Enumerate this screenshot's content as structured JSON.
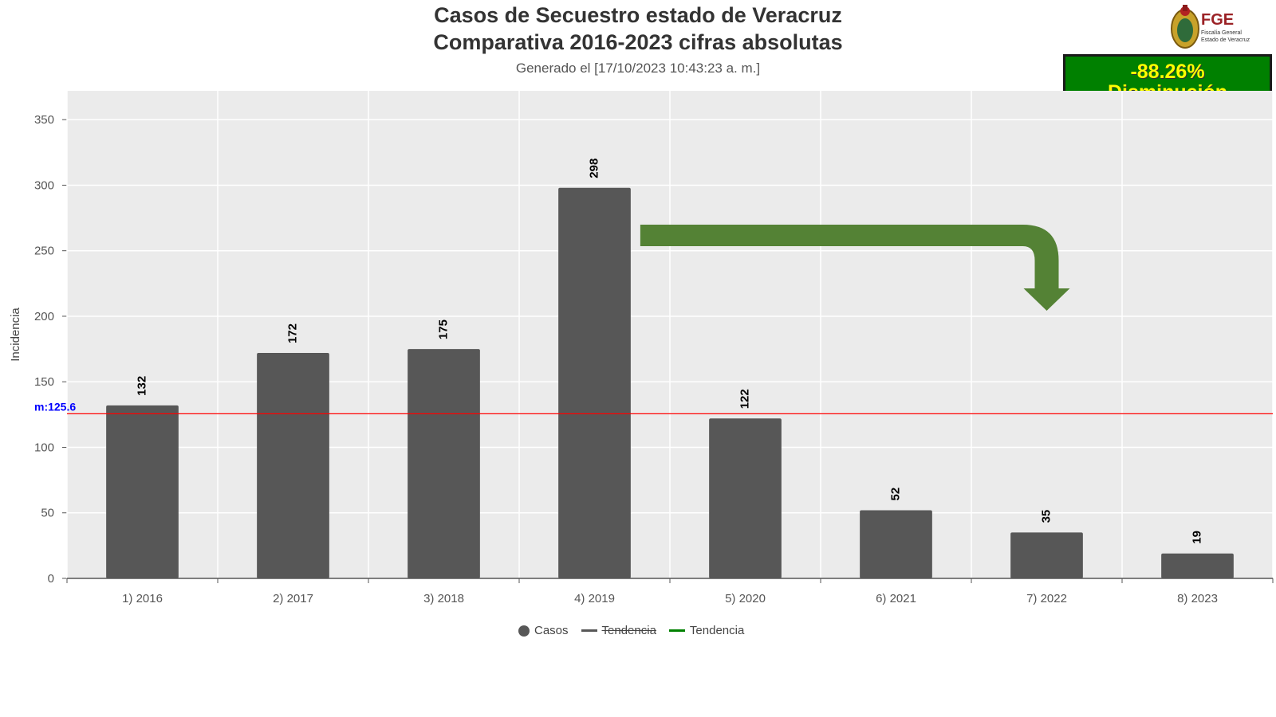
{
  "chart_data": {
    "type": "bar",
    "title_line1": "Casos de Secuestro estado de Veracruz",
    "title_line2": "Comparativa 2016-2023 cifras absolutas",
    "subtitle": "Generado el [17/10/2023 10:43:23 a. m.]",
    "ylabel": "Incidencia",
    "xlabel": "",
    "categories": [
      "1) 2016",
      "2) 2017",
      "3) 2018",
      "4) 2019",
      "5) 2020",
      "6) 2021",
      "7) 2022",
      "8) 2023"
    ],
    "values": [
      132,
      172,
      175,
      298,
      122,
      52,
      35,
      19
    ],
    "ylim": [
      0,
      372
    ],
    "yticks": [
      0,
      50,
      100,
      150,
      200,
      250,
      300,
      350
    ],
    "mean": 125.6,
    "mean_label": "m:125.6",
    "grid": true,
    "legend_position": "bottom",
    "legend": [
      {
        "label": "Casos",
        "symbol": "dot",
        "color": "#575757",
        "strikethrough": false
      },
      {
        "label": "Tendencia",
        "symbol": "line",
        "color": "#575757",
        "strikethrough": true
      },
      {
        "label": "Tendencia",
        "symbol": "line",
        "color": "#008000",
        "strikethrough": false
      }
    ],
    "annotation_arrow": {
      "from_category": "4) 2019",
      "to_category": "7) 2022",
      "direction": "down",
      "color": "#548235"
    }
  },
  "badge": {
    "line1": "-88.26%",
    "line2": "Disminución"
  },
  "logo": {
    "abbr": "FGE",
    "line1": "Fiscalía General",
    "line2": "Estado de Veracruz"
  },
  "colors": {
    "bar": "#575757",
    "mean_line": "#ff0000",
    "mean_label": "#0000ff",
    "plot_bg": "#ebebeb",
    "badge_bg": "#008000",
    "badge_text": "#ffff00",
    "arrow": "#548235"
  }
}
